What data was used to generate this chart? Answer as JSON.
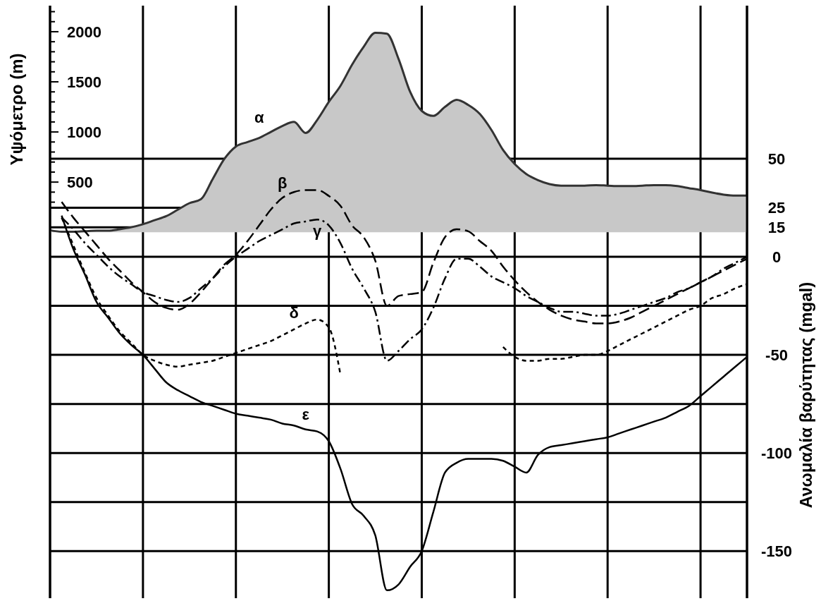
{
  "chart_data": {
    "type": "line",
    "ylabel": "Υψόμετρο (m)",
    "y2label": "Ανωμαλία βαρύτητας (mgal)",
    "categories": [
      null,
      null,
      null,
      null,
      null,
      null,
      null,
      null,
      null,
      null,
      null,
      null,
      null,
      null,
      null,
      null,
      null,
      null,
      null,
      null,
      null,
      null,
      null,
      null,
      null,
      null,
      null,
      null,
      null,
      null,
      null,
      null,
      null,
      null,
      null,
      null,
      null,
      null,
      null,
      null,
      null,
      null,
      null,
      null,
      null,
      null,
      null,
      null,
      null,
      null,
      null,
      null,
      null,
      null,
      null,
      null,
      null,
      null,
      null,
      null,
      null
    ],
    "ylim": [
      -3650,
      2260
    ],
    "yticks": [
      {
        "value": 300,
        "label": null
      },
      {
        "value": 400,
        "label": null
      },
      500,
      {
        "value": 600,
        "label": null
      },
      {
        "value": 700,
        "label": null
      },
      {
        "value": 800,
        "label": null
      },
      {
        "value": 900,
        "label": null
      },
      1000,
      {
        "value": 1100,
        "label": null
      },
      {
        "value": 1200,
        "label": null
      },
      {
        "value": 1300,
        "label": null
      },
      {
        "value": 1400,
        "label": null
      },
      1500,
      {
        "value": 1600,
        "label": null
      },
      {
        "value": 1700,
        "label": null
      },
      {
        "value": 1800,
        "label": null
      },
      {
        "value": 1900,
        "label": null
      },
      2000,
      {
        "value": 2100,
        "label": null
      },
      {
        "value": 2200,
        "label": null
      }
    ],
    "y2lim": [
      -174,
      128
    ],
    "y2ticks": [
      50,
      25,
      15,
      0,
      {
        "value": -25,
        "label": null
      },
      -50,
      {
        "value": -75,
        "label": null
      },
      -100,
      {
        "value": -125,
        "label": null
      },
      -150
    ],
    "grid": true,
    "series": [
      {
        "name": "α",
        "type": "area",
        "color": "#c8c8c8",
        "values": [
          20,
          5,
          5,
          10,
          15,
          15,
          30,
          50,
          80,
          120,
          160,
          225,
          290,
          330,
          530,
          730,
          855,
          900,
          940,
          1000,
          1060,
          1100,
          990,
          1120,
          1300,
          1460,
          1670,
          1850,
          1990,
          1980,
          1730,
          1400,
          1210,
          1160,
          1250,
          1320,
          1270,
          1180,
          1020,
          820,
          680,
          580,
          520,
          480,
          465,
          465,
          465,
          470,
          465,
          460,
          460,
          465,
          470,
          470,
          460,
          440,
          420,
          395,
          375,
          365,
          365
        ]
      },
      {
        "name": "β",
        "axis": "y2",
        "color": "#000000",
        "line_style": "dashed",
        "values": [
          null,
          28,
          20,
          13,
          6,
          -1,
          -7,
          -13,
          -18,
          -23,
          -26,
          -27,
          -24,
          -18,
          -11,
          -4,
          1,
          8,
          16,
          24,
          30,
          33,
          34,
          34,
          31,
          26,
          16,
          10,
          -2,
          -25,
          -20,
          -19,
          -18,
          -3,
          10,
          14,
          13,
          8,
          3,
          -5,
          -12,
          -18,
          -23,
          -27,
          -30,
          -32,
          -33,
          -34,
          -34,
          -33,
          -31,
          -28,
          -25,
          -22,
          -19,
          -16,
          -13,
          -10,
          -7,
          -4,
          -1
        ]
      },
      {
        "name": "γ",
        "axis": "y2",
        "color": "#000000",
        "line_style": "dashdot",
        "values": [
          null,
          20,
          14,
          7,
          1,
          -5,
          -10,
          -14,
          -18,
          -20,
          -22,
          -23,
          -21,
          -16,
          -11,
          -5,
          0,
          4,
          8,
          11,
          14,
          17,
          18,
          19,
          16,
          7,
          -6,
          -16,
          -28,
          -53,
          -48,
          -42,
          -37,
          -26,
          -11,
          -1,
          -1,
          -5,
          -10,
          -13,
          -16,
          -20,
          -23,
          -26,
          -28,
          -28,
          -29,
          -30,
          -30,
          -29,
          -27,
          -25,
          -23,
          -21,
          -18,
          -16,
          -13,
          -10,
          -6,
          -3,
          0
        ]
      },
      {
        "name": "δ",
        "axis": "y2",
        "color": "#000000",
        "line_style": "dotted",
        "values": [
          null,
          20,
          6,
          -8,
          -21,
          -30,
          -38,
          -44,
          -50,
          -53,
          -55,
          -56,
          -55,
          -54,
          -53,
          -51,
          -49,
          -47,
          -45,
          -43,
          -40,
          -37,
          -34,
          -32,
          -36,
          -60,
          null,
          null,
          null,
          null,
          null,
          null,
          null,
          null,
          null,
          null,
          null,
          null,
          null,
          -46,
          -51,
          -53,
          -53,
          -52,
          -52,
          -51,
          -50,
          -50,
          -48,
          -45,
          -42,
          -39,
          -36,
          -33,
          -30,
          -27,
          -25,
          -21,
          -19,
          -16,
          -14
        ]
      },
      {
        "name": "ε",
        "axis": "y2",
        "color": "#000000",
        "line_style": "solid",
        "values": [
          null,
          21,
          4,
          -9,
          -23,
          -31,
          -39,
          -45,
          -50,
          -57,
          -64,
          -68,
          -71,
          -74,
          -76,
          -78,
          -80,
          -81,
          -82,
          -83,
          -85,
          -86,
          -88,
          -89,
          -94,
          -108,
          -126,
          -132,
          -142,
          -170,
          -167,
          -158,
          -150,
          -130,
          -110,
          -105,
          -103,
          -103,
          -103,
          -104,
          -107,
          -110,
          -101,
          -97,
          -96,
          -95,
          -94,
          -93,
          -92,
          -90,
          -88,
          -86,
          -84,
          -82,
          -79,
          -76,
          -71,
          -66,
          -61,
          -56,
          -51
        ]
      }
    ]
  }
}
